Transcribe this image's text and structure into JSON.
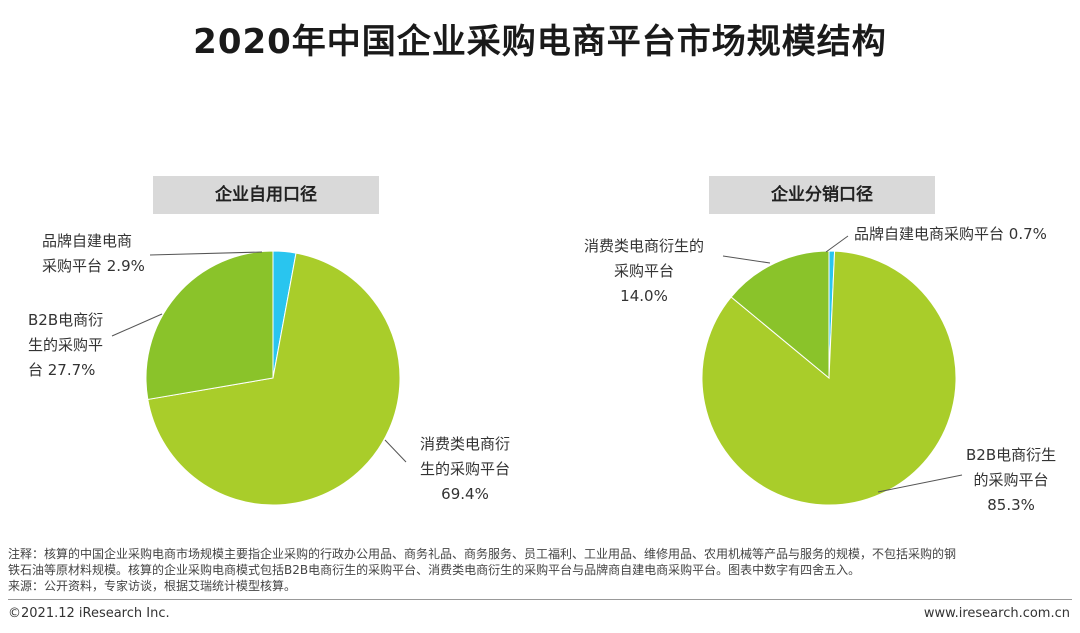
{
  "title": "2020年中国企业采购电商平台市场规模结构",
  "chart_data": [
    {
      "type": "pie",
      "title": "企业自用口径",
      "slices": [
        {
          "label_lines": [
            "品牌自建电商",
            "采购平台 2.9%"
          ],
          "value": 2.9,
          "color": "#29c5ef"
        },
        {
          "label_lines": [
            "消费类电商衍",
            "生的采购平台",
            "69.4%"
          ],
          "value": 69.4,
          "color": "#a9cd2a"
        },
        {
          "label_lines": [
            "B2B电商衍",
            "生的采购平",
            "台 27.7%"
          ],
          "value": 27.7,
          "color": "#8ac32a"
        }
      ]
    },
    {
      "type": "pie",
      "title": "企业分销口径",
      "slices": [
        {
          "label_lines": [
            "品牌自建电商采购平台 0.7%"
          ],
          "value": 0.7,
          "color": "#29c5ef"
        },
        {
          "label_lines": [
            "B2B电商衍生",
            "的采购平台",
            "85.3%"
          ],
          "value": 85.3,
          "color": "#a9cd2a"
        },
        {
          "label_lines": [
            "消费类电商衍生的",
            "采购平台",
            "14.0%"
          ],
          "value": 14.0,
          "color": "#8ac32a"
        }
      ]
    }
  ],
  "notes": {
    "line1": "注释：核算的中国企业采购电商市场规模主要指企业采购的行政办公用品、商务礼品、商务服务、员工福利、工业用品、维修用品、农用机械等产品与服务的规模，不包括采购的钢",
    "line2": "铁石油等原材料规模。核算的企业采购电商模式包括B2B电商衍生的采购平台、消费类电商衍生的采购平台与品牌商自建电商采购平台。图表中数字有四舍五入。",
    "line3": "来源：公开资料，专家访谈，根据艾瑞统计模型核算。"
  },
  "footer": {
    "copyright": "©2021.12 iResearch Inc.",
    "website": "www.iresearch.com.cn"
  }
}
